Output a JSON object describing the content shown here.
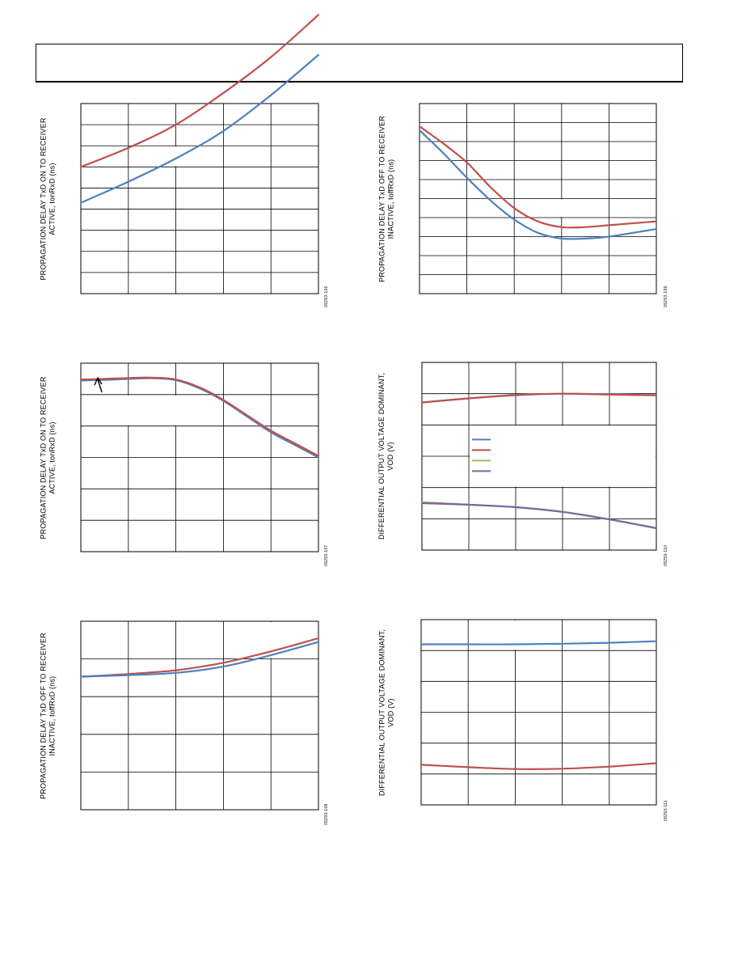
{
  "page": {
    "header": ""
  },
  "chart_data": [
    {
      "id": "c1",
      "type": "line",
      "ylabel_line1": "PROPAGATION DELAY TxD ON TO RECEIVER",
      "ylabel_line2": "ACTIVE, tonRxD (ns)",
      "figure_number": "09293-106",
      "x_cols": 5,
      "y_rows": 9,
      "gaps": [
        {
          "col": 1,
          "row": 2,
          "w": 2,
          "h": 1
        }
      ],
      "series": [
        {
          "color": "#c0504d",
          "points": [
            [
              0,
              6.0
            ],
            [
              1,
              6.9
            ],
            [
              2,
              8.0
            ],
            [
              3,
              9.5
            ],
            [
              4,
              11.2
            ],
            [
              5,
              13.2
            ]
          ]
        },
        {
          "color": "#4f81bd",
          "points": [
            [
              0,
              4.3
            ],
            [
              1,
              5.3
            ],
            [
              2,
              6.4
            ],
            [
              3,
              7.7
            ],
            [
              4,
              9.4
            ],
            [
              5,
              11.3
            ]
          ]
        }
      ]
    },
    {
      "id": "c2",
      "type": "line",
      "ylabel_line1": "PROPAGATION DELAY TxD OFF TO RECEIVER",
      "ylabel_line2": "INACTIVE, toffRxD (ns)",
      "figure_number": "09293-109",
      "x_cols": 5,
      "y_rows": 10,
      "gaps": [
        {
          "col": 2,
          "row": 5,
          "w": 2,
          "h": 1
        }
      ],
      "series": [
        {
          "color": "#c0504d",
          "points": [
            [
              0,
              8.8
            ],
            [
              0.5,
              7.9
            ],
            [
              1,
              6.9
            ],
            [
              1.5,
              5.6
            ],
            [
              2,
              4.5
            ],
            [
              2.5,
              3.8
            ],
            [
              3,
              3.5
            ],
            [
              3.5,
              3.5
            ],
            [
              4,
              3.6
            ],
            [
              5,
              3.8
            ]
          ]
        },
        {
          "color": "#4f81bd",
          "points": [
            [
              0,
              8.6
            ],
            [
              0.5,
              7.4
            ],
            [
              1,
              6.1
            ],
            [
              1.5,
              4.9
            ],
            [
              2,
              3.9
            ],
            [
              2.5,
              3.2
            ],
            [
              3,
              2.9
            ],
            [
              3.5,
              2.9
            ],
            [
              4,
              3.0
            ],
            [
              5,
              3.4
            ]
          ]
        }
      ]
    },
    {
      "id": "c3",
      "type": "line",
      "ylabel_line1": "PROPAGATION DELAY TxD ON TO RECEIVER",
      "ylabel_line2": "ACTIVE, tonRxD (ns)",
      "figure_number": "09293-107",
      "x_cols": 5,
      "y_rows": 6,
      "gaps": [
        {
          "col": 0,
          "row": 1,
          "w": 3,
          "h": 1
        }
      ],
      "series": [
        {
          "color": "#4f81bd",
          "points": [
            [
              0,
              5.45
            ],
            [
              0.5,
              5.47
            ],
            [
              1,
              5.5
            ],
            [
              1.5,
              5.52
            ],
            [
              2,
              5.46
            ],
            [
              2.5,
              5.2
            ],
            [
              3,
              4.8
            ],
            [
              3.5,
              4.3
            ],
            [
              4,
              3.8
            ],
            [
              4.5,
              3.4
            ],
            [
              5,
              3.0
            ]
          ]
        },
        {
          "color": "#c0504d",
          "points": [
            [
              0,
              5.48
            ],
            [
              0.5,
              5.5
            ],
            [
              1,
              5.53
            ],
            [
              1.5,
              5.54
            ],
            [
              2,
              5.48
            ],
            [
              2.5,
              5.23
            ],
            [
              3,
              4.83
            ],
            [
              3.5,
              4.34
            ],
            [
              4,
              3.85
            ],
            [
              4.5,
              3.45
            ],
            [
              5,
              3.05
            ]
          ]
        }
      ]
    },
    {
      "id": "c4",
      "type": "line",
      "ylabel_line1": "DIFFERENTIAL OUTPUT VOLTAGE DOMINANT,",
      "ylabel_line2": "VOD (V)",
      "figure_number": "09293-110",
      "x_cols": 5,
      "y_rows": 6,
      "gaps": [
        {
          "col": 1,
          "row": 2,
          "w": 4,
          "h": 2
        }
      ],
      "legend": {
        "colors": [
          "#4f81bd",
          "#c0504d",
          "#9bbb59",
          "#8064a2"
        ]
      },
      "series": [
        {
          "color": "#4f81bd",
          "points": [
            [
              0,
              4.72
            ],
            [
              1,
              4.85
            ],
            [
              2,
              4.95
            ],
            [
              3,
              5.0
            ],
            [
              4,
              4.98
            ],
            [
              5,
              4.95
            ]
          ]
        },
        {
          "color": "#c0504d",
          "points": [
            [
              0,
              4.72
            ],
            [
              1,
              4.85
            ],
            [
              2,
              4.96
            ],
            [
              3,
              5.0
            ],
            [
              4,
              4.97
            ],
            [
              5,
              4.95
            ]
          ]
        },
        {
          "color": "#9bbb59",
          "points": [
            [
              0,
              1.53
            ],
            [
              1,
              1.45
            ],
            [
              2,
              1.37
            ],
            [
              3,
              1.22
            ],
            [
              4,
              0.98
            ],
            [
              5,
              0.7
            ]
          ]
        },
        {
          "color": "#8064a2",
          "points": [
            [
              0,
              1.5
            ],
            [
              1,
              1.45
            ],
            [
              2,
              1.37
            ],
            [
              3,
              1.22
            ],
            [
              4,
              0.98
            ],
            [
              5,
              0.7
            ]
          ]
        }
      ]
    },
    {
      "id": "c5",
      "type": "line",
      "ylabel_line1": "PROPAGATION DELAY TxD OFF TO RECEIVER",
      "ylabel_line2": "INACTIVE, toffRxD (ns)",
      "figure_number": "09293-108",
      "x_cols": 5,
      "y_rows": 5,
      "gaps": [
        {
          "col": 3,
          "row": 0,
          "w": 2,
          "h": 1
        }
      ],
      "series": [
        {
          "color": "#c0504d",
          "points": [
            [
              0,
              3.53
            ],
            [
              1,
              3.6
            ],
            [
              2,
              3.7
            ],
            [
              3,
              3.9
            ],
            [
              4,
              4.2
            ],
            [
              5,
              4.55
            ]
          ]
        },
        {
          "color": "#4f81bd",
          "points": [
            [
              0,
              3.53
            ],
            [
              1,
              3.57
            ],
            [
              2,
              3.63
            ],
            [
              3,
              3.8
            ],
            [
              4,
              4.1
            ],
            [
              5,
              4.45
            ]
          ]
        }
      ]
    },
    {
      "id": "c6",
      "type": "line",
      "ylabel_line1": "DIFFERENTIAL OUTPUT VOLTAGE DOMINANT,",
      "ylabel_line2": "VOD (V)",
      "figure_number": "09293-111",
      "x_cols": 5,
      "y_rows": 6,
      "gaps": [
        {
          "col": 1,
          "row": 0,
          "w": 2,
          "h": 1
        }
      ],
      "series": [
        {
          "color": "#4f81bd",
          "points": [
            [
              0,
              5.2
            ],
            [
              1,
              5.2
            ],
            [
              2,
              5.2
            ],
            [
              3,
              5.22
            ],
            [
              4,
              5.25
            ],
            [
              5,
              5.3
            ]
          ]
        },
        {
          "color": "#c0504d",
          "points": [
            [
              0,
              1.3
            ],
            [
              1,
              1.22
            ],
            [
              2,
              1.16
            ],
            [
              3,
              1.17
            ],
            [
              4,
              1.24
            ],
            [
              5,
              1.35
            ]
          ]
        }
      ]
    }
  ]
}
